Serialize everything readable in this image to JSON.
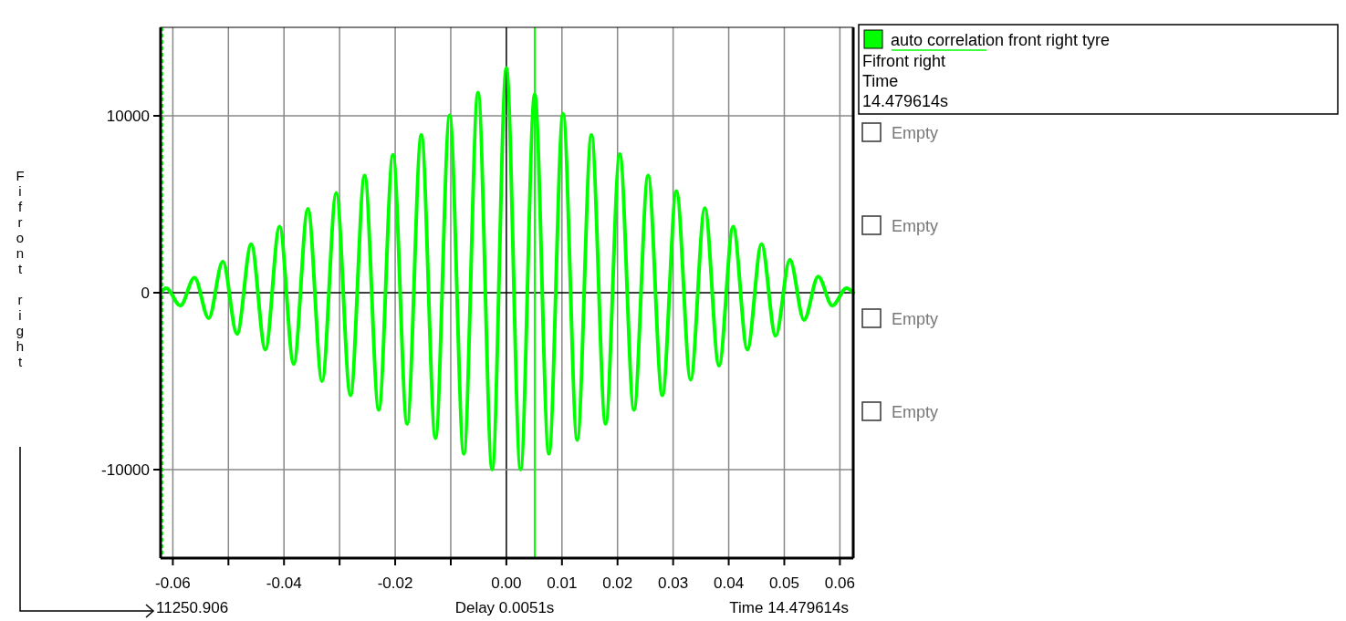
{
  "chart_data": {
    "type": "line",
    "ylabel": "Fifront right",
    "x": [
      -0.0622,
      -0.0612,
      -0.05865,
      -0.0561,
      -0.05355,
      -0.051,
      -0.04845,
      -0.0459,
      -0.04335,
      -0.0408,
      -0.03825,
      -0.0357,
      -0.03315,
      -0.0306,
      -0.02805,
      -0.0255,
      -0.02295,
      -0.0204,
      -0.01785,
      -0.0153,
      -0.01275,
      -0.0102,
      -0.00765,
      -0.0051,
      -0.00255,
      0,
      0.00255,
      0.0051,
      0.00765,
      0.0102,
      0.01275,
      0.0153,
      0.01785,
      0.0204,
      0.02295,
      0.0255,
      0.02805,
      0.0306,
      0.03315,
      0.0357,
      0.03825,
      0.0408,
      0.04335,
      0.0459,
      0.04845,
      0.051,
      0.05355,
      0.0561,
      0.05865,
      0.0612,
      0.0624
    ],
    "series": [
      {
        "name": "auto correlation front right tyre",
        "color": "#00ff00",
        "values": [
          0,
          260,
          -730,
          850,
          -1440,
          1760,
          -2330,
          2750,
          -3210,
          3740,
          -4030,
          4740,
          -5000,
          5650,
          -5800,
          6630,
          -6620,
          7790,
          -7410,
          8920,
          -8220,
          10020,
          -9110,
          11320,
          -10000,
          12710,
          -10000,
          11220,
          -9110,
          10120,
          -8320,
          8920,
          -7410,
          7830,
          -6620,
          6630,
          -5800,
          5750,
          -4920,
          4780,
          -4130,
          3740,
          -3210,
          2750,
          -2440,
          1870,
          -1540,
          910,
          -730,
          260,
          0
        ]
      }
    ],
    "xlim": [
      -0.0622,
      0.0624
    ],
    "ylim": [
      -15000,
      15000
    ],
    "xticks": [
      -0.06,
      {
        "value": -0.05,
        "label": null
      },
      -0.04,
      {
        "value": -0.03,
        "label": null
      },
      -0.02,
      {
        "value": -0.01,
        "label": null
      },
      {
        "value": 0,
        "label": "0.00"
      },
      0.01,
      0.02,
      0.03,
      0.04,
      0.05,
      0.06
    ],
    "yticks": [
      -10000,
      0,
      10000
    ],
    "grid": true,
    "legend": "top right",
    "marker": "none",
    "line_style": "solid",
    "ref_lines": [
      {
        "axis": "x",
        "value": 0.0051,
        "color": "#00ff00"
      },
      {
        "axis": "x",
        "value": -0.0619,
        "color": "#00ff00",
        "line_style": "dashed"
      }
    ],
    "annotations": [
      "Fifront right",
      "Time",
      "14.479614s",
      "Empty",
      "Empty",
      "Empty",
      "Empty",
      "11250.906",
      "Delay 0.0051s",
      "Time 14.479614s"
    ]
  }
}
